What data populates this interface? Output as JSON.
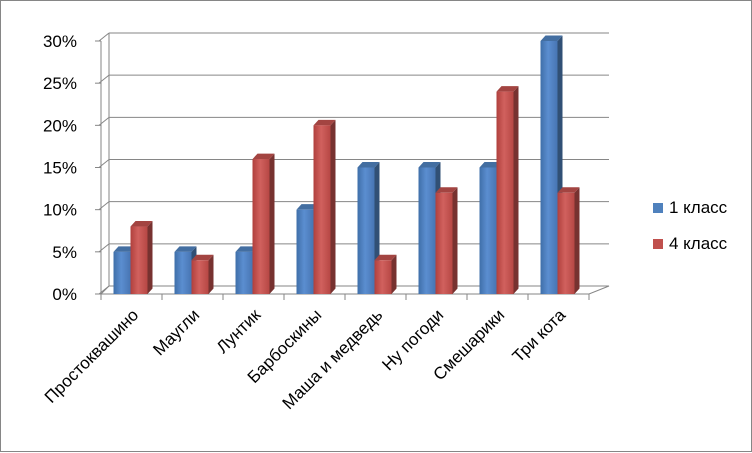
{
  "chart_data": {
    "type": "bar",
    "categories": [
      "Простоквашино",
      "Маугли",
      "Лунтик",
      "Барбоскины",
      "Маша и медведь",
      "Ну погоди",
      "Смешарики",
      "Три кота"
    ],
    "series": [
      {
        "name": "1 класс",
        "values": [
          5,
          5,
          5,
          10,
          15,
          15,
          15,
          30
        ],
        "color": "#4F81BD"
      },
      {
        "name": "4 класс",
        "values": [
          8,
          4,
          16,
          20,
          4,
          12,
          24,
          12
        ],
        "color": "#C0504D"
      }
    ],
    "y_ticks": [
      "0%",
      "5%",
      "10%",
      "15%",
      "20%",
      "25%",
      "30%"
    ],
    "ylim": [
      0,
      30
    ],
    "grid": true,
    "legend_position": "right",
    "title": "",
    "xlabel": "",
    "ylabel": ""
  }
}
